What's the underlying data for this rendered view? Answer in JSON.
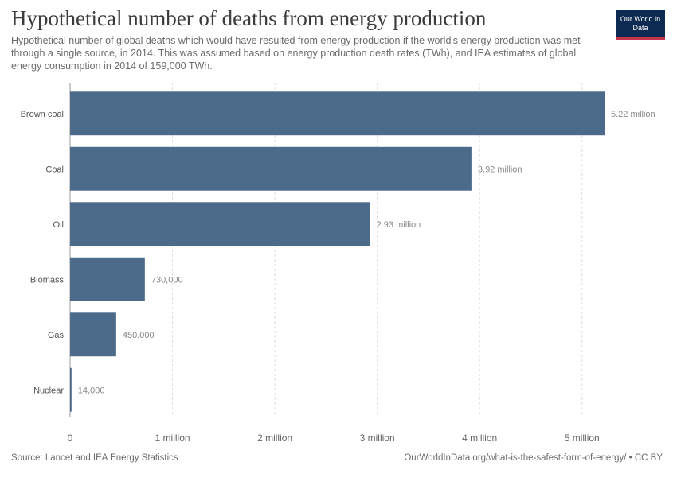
{
  "header": {
    "title": "Hypothetical number of deaths from energy production",
    "subtitle": "Hypothetical number of global deaths which would have resulted from energy production if the world's energy production was met through a single source, in 2014. This was assumed based on energy production death rates (TWh), and IEA estimates of global energy consumption in 2014 of 159,000 TWh.",
    "logo_text": "Our World in Data"
  },
  "footer": {
    "source": "Source: Lancet and IEA Energy Statistics",
    "note": "OurWorldInData.org/what-is-the-safest-form-of-energy/ • CC BY"
  },
  "chart_data": {
    "type": "bar",
    "orientation": "horizontal",
    "title": "Hypothetical number of deaths from energy production",
    "categories": [
      "Brown coal",
      "Coal",
      "Oil",
      "Biomass",
      "Gas",
      "Nuclear"
    ],
    "values": [
      5220000,
      3920000,
      2930000,
      730000,
      450000,
      14000
    ],
    "value_labels": [
      "5.22 million",
      "3.92 million",
      "2.93 million",
      "730,000",
      "450,000",
      "14,000"
    ],
    "xlim": [
      0,
      5500000
    ],
    "ticks": [
      0,
      1000000,
      2000000,
      3000000,
      4000000,
      5000000
    ],
    "tick_labels": [
      "0",
      "1 million",
      "2 million",
      "3 million",
      "4 million",
      "5 million"
    ],
    "grid": true,
    "legend": "none",
    "colors": {
      "bar": "#4c6a8a"
    }
  }
}
